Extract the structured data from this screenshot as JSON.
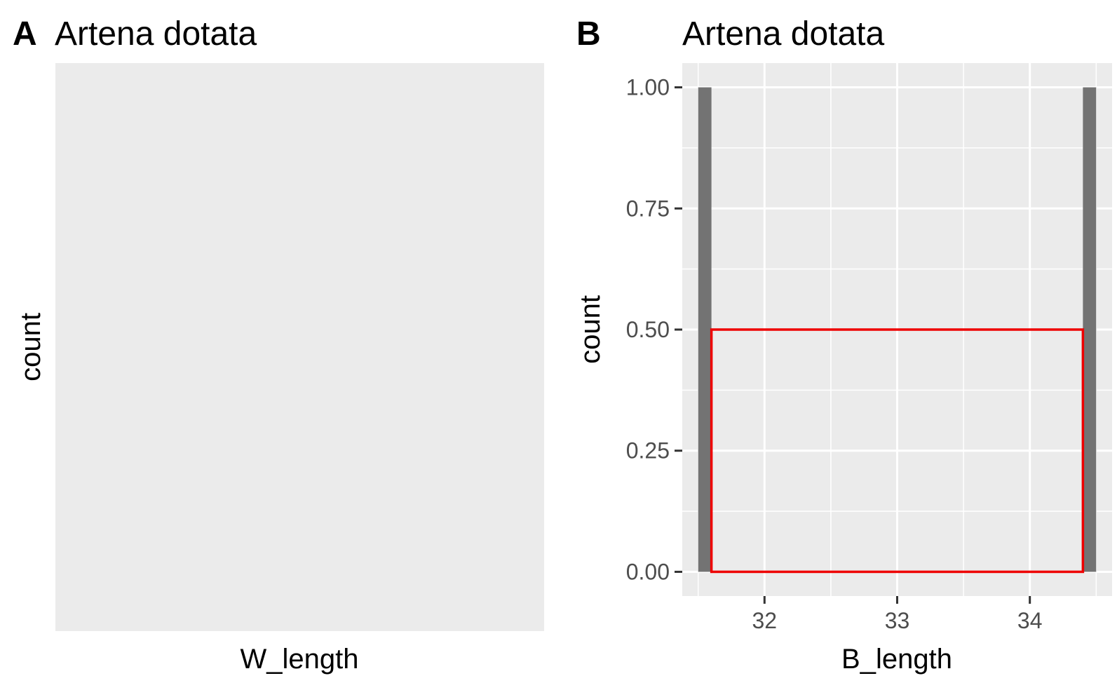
{
  "chart_data": [
    {
      "type": "bar",
      "tag": "A",
      "title": "Artena dotata",
      "xlabel": "W_length",
      "ylabel": "count",
      "bars": [],
      "highlight": null,
      "grid": false
    },
    {
      "type": "bar",
      "tag": "B",
      "title": "Artena dotata",
      "xlabel": "B_length",
      "ylabel": "count",
      "xlim": [
        31.38,
        34.62
      ],
      "ylim": [
        -0.05,
        1.05
      ],
      "xticks": [
        32,
        33,
        34
      ],
      "xtick_labels": [
        "32",
        "33",
        "34"
      ],
      "yticks": [
        0,
        0.25,
        0.5,
        0.75,
        1
      ],
      "ytick_labels": [
        "0.00",
        "0.25",
        "0.50",
        "0.75",
        "1.00"
      ],
      "bars": [
        {
          "x": 31.55,
          "width": 0.1,
          "value": 1
        },
        {
          "x": 34.45,
          "width": 0.1,
          "value": 1
        }
      ],
      "bar_color": "#737373",
      "highlight": {
        "x0": 31.6,
        "x1": 34.4,
        "y0": 0,
        "y1": 0.5,
        "color": "#ee0000"
      },
      "grid": true
    }
  ]
}
